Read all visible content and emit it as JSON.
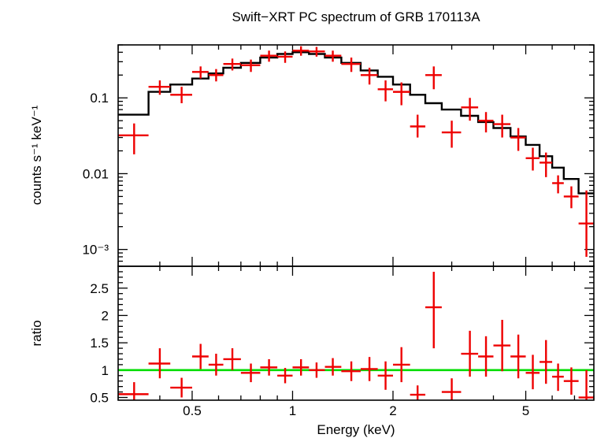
{
  "chart_data": {
    "type": "scatter",
    "title": "Swift−XRT PC spectrum of GRB 170113A",
    "xlabel": "Energy (keV)",
    "xscale": "log",
    "xlim": [
      0.3,
      8.0
    ],
    "xticks": [
      {
        "value": 0.5,
        "label": "0.5"
      },
      {
        "value": 1,
        "label": "1"
      },
      {
        "value": 2,
        "label": "2"
      },
      {
        "value": 5,
        "label": "5"
      }
    ],
    "colors": {
      "data": "#ee0000",
      "model": "#000000",
      "unity": "#00dd00",
      "axes": "#000000"
    },
    "panels": {
      "spectrum": {
        "ylabel": "counts s⁻¹ keV⁻¹",
        "yscale": "log",
        "ylim": [
          0.0006,
          0.5
        ],
        "yticks": [
          {
            "value": 0.1,
            "label": "0.1"
          },
          {
            "value": 0.01,
            "label": "0.01"
          },
          {
            "value": 0.001,
            "label": "10⁻³"
          }
        ],
        "model": {
          "edges": [
            0.3,
            0.37,
            0.43,
            0.5,
            0.56,
            0.62,
            0.7,
            0.8,
            0.9,
            1.0,
            1.12,
            1.25,
            1.4,
            1.6,
            1.8,
            2.0,
            2.25,
            2.5,
            2.8,
            3.2,
            3.6,
            4.0,
            4.5,
            5.0,
            5.5,
            6.0,
            6.5,
            7.2,
            8.0
          ],
          "values": [
            0.06,
            0.12,
            0.15,
            0.18,
            0.21,
            0.25,
            0.29,
            0.34,
            0.38,
            0.4,
            0.38,
            0.34,
            0.29,
            0.23,
            0.19,
            0.15,
            0.11,
            0.085,
            0.07,
            0.058,
            0.048,
            0.04,
            0.031,
            0.024,
            0.017,
            0.012,
            0.0085,
            0.0055
          ]
        },
        "points": [
          {
            "x": 0.335,
            "xlo": 0.3,
            "xhi": 0.37,
            "y": 0.032,
            "ylo": 0.018,
            "yhi": 0.046
          },
          {
            "x": 0.4,
            "xlo": 0.37,
            "xhi": 0.43,
            "y": 0.14,
            "ylo": 0.11,
            "yhi": 0.17
          },
          {
            "x": 0.465,
            "xlo": 0.43,
            "xhi": 0.5,
            "y": 0.11,
            "ylo": 0.085,
            "yhi": 0.14
          },
          {
            "x": 0.53,
            "xlo": 0.5,
            "xhi": 0.56,
            "y": 0.22,
            "ylo": 0.18,
            "yhi": 0.26
          },
          {
            "x": 0.59,
            "xlo": 0.56,
            "xhi": 0.62,
            "y": 0.2,
            "ylo": 0.165,
            "yhi": 0.24
          },
          {
            "x": 0.66,
            "xlo": 0.62,
            "xhi": 0.7,
            "y": 0.28,
            "ylo": 0.23,
            "yhi": 0.33
          },
          {
            "x": 0.75,
            "xlo": 0.7,
            "xhi": 0.8,
            "y": 0.27,
            "ylo": 0.22,
            "yhi": 0.32
          },
          {
            "x": 0.85,
            "xlo": 0.8,
            "xhi": 0.9,
            "y": 0.36,
            "ylo": 0.3,
            "yhi": 0.42
          },
          {
            "x": 0.95,
            "xlo": 0.9,
            "xhi": 1.0,
            "y": 0.35,
            "ylo": 0.29,
            "yhi": 0.41
          },
          {
            "x": 1.06,
            "xlo": 1.0,
            "xhi": 1.12,
            "y": 0.42,
            "ylo": 0.36,
            "yhi": 0.48
          },
          {
            "x": 1.18,
            "xlo": 1.12,
            "xhi": 1.25,
            "y": 0.41,
            "ylo": 0.35,
            "yhi": 0.47
          },
          {
            "x": 1.32,
            "xlo": 1.25,
            "xhi": 1.4,
            "y": 0.36,
            "ylo": 0.3,
            "yhi": 0.42
          },
          {
            "x": 1.5,
            "xlo": 1.4,
            "xhi": 1.6,
            "y": 0.28,
            "ylo": 0.22,
            "yhi": 0.34
          },
          {
            "x": 1.7,
            "xlo": 1.6,
            "xhi": 1.8,
            "y": 0.2,
            "ylo": 0.15,
            "yhi": 0.25
          },
          {
            "x": 1.9,
            "xlo": 1.8,
            "xhi": 2.0,
            "y": 0.13,
            "ylo": 0.09,
            "yhi": 0.17
          },
          {
            "x": 2.12,
            "xlo": 2.0,
            "xhi": 2.25,
            "y": 0.12,
            "ylo": 0.08,
            "yhi": 0.16
          },
          {
            "x": 2.37,
            "xlo": 2.25,
            "xhi": 2.5,
            "y": 0.042,
            "ylo": 0.03,
            "yhi": 0.06
          },
          {
            "x": 2.65,
            "xlo": 2.5,
            "xhi": 2.8,
            "y": 0.2,
            "ylo": 0.13,
            "yhi": 0.26
          },
          {
            "x": 3.0,
            "xlo": 2.8,
            "xhi": 3.2,
            "y": 0.035,
            "ylo": 0.022,
            "yhi": 0.05
          },
          {
            "x": 3.4,
            "xlo": 3.2,
            "xhi": 3.6,
            "y": 0.075,
            "ylo": 0.05,
            "yhi": 0.1
          },
          {
            "x": 3.8,
            "xlo": 3.6,
            "xhi": 4.0,
            "y": 0.05,
            "ylo": 0.035,
            "yhi": 0.065
          },
          {
            "x": 4.25,
            "xlo": 4.0,
            "xhi": 4.5,
            "y": 0.045,
            "ylo": 0.03,
            "yhi": 0.06
          },
          {
            "x": 4.75,
            "xlo": 4.5,
            "xhi": 5.0,
            "y": 0.03,
            "ylo": 0.02,
            "yhi": 0.04
          },
          {
            "x": 5.25,
            "xlo": 5.0,
            "xhi": 5.5,
            "y": 0.016,
            "ylo": 0.011,
            "yhi": 0.022
          },
          {
            "x": 5.75,
            "xlo": 5.5,
            "xhi": 6.0,
            "y": 0.014,
            "ylo": 0.009,
            "yhi": 0.019
          },
          {
            "x": 6.25,
            "xlo": 6.0,
            "xhi": 6.5,
            "y": 0.0075,
            "ylo": 0.0055,
            "yhi": 0.0095
          },
          {
            "x": 6.85,
            "xlo": 6.5,
            "xhi": 7.2,
            "y": 0.005,
            "ylo": 0.0035,
            "yhi": 0.0068
          },
          {
            "x": 7.6,
            "xlo": 7.2,
            "xhi": 8.0,
            "y": 0.0022,
            "ylo": 0.0008,
            "yhi": 0.006
          }
        ]
      },
      "ratio": {
        "ylabel": "ratio",
        "yscale": "linear",
        "ylim": [
          0.45,
          2.9
        ],
        "yticks": [
          {
            "value": 0.5,
            "label": "0.5"
          },
          {
            "value": 1,
            "label": "1"
          },
          {
            "value": 1.5,
            "label": "1.5"
          },
          {
            "value": 2,
            "label": "2"
          },
          {
            "value": 2.5,
            "label": "2.5"
          }
        ],
        "unity": 1,
        "points": [
          {
            "x": 0.335,
            "xlo": 0.3,
            "xhi": 0.37,
            "y": 0.56,
            "ylo": 0.45,
            "yhi": 0.78
          },
          {
            "x": 0.4,
            "xlo": 0.37,
            "xhi": 0.43,
            "y": 1.12,
            "ylo": 0.85,
            "yhi": 1.4
          },
          {
            "x": 0.465,
            "xlo": 0.43,
            "xhi": 0.5,
            "y": 0.68,
            "ylo": 0.5,
            "yhi": 0.86
          },
          {
            "x": 0.53,
            "xlo": 0.5,
            "xhi": 0.56,
            "y": 1.25,
            "ylo": 1.02,
            "yhi": 1.48
          },
          {
            "x": 0.59,
            "xlo": 0.56,
            "xhi": 0.62,
            "y": 1.1,
            "ylo": 0.9,
            "yhi": 1.3
          },
          {
            "x": 0.66,
            "xlo": 0.62,
            "xhi": 0.7,
            "y": 1.2,
            "ylo": 1.0,
            "yhi": 1.4
          },
          {
            "x": 0.75,
            "xlo": 0.7,
            "xhi": 0.8,
            "y": 0.95,
            "ylo": 0.78,
            "yhi": 1.12
          },
          {
            "x": 0.85,
            "xlo": 0.8,
            "xhi": 0.9,
            "y": 1.05,
            "ylo": 0.9,
            "yhi": 1.2
          },
          {
            "x": 0.95,
            "xlo": 0.9,
            "xhi": 1.0,
            "y": 0.9,
            "ylo": 0.76,
            "yhi": 1.04
          },
          {
            "x": 1.06,
            "xlo": 1.0,
            "xhi": 1.12,
            "y": 1.05,
            "ylo": 0.9,
            "yhi": 1.2
          },
          {
            "x": 1.18,
            "xlo": 1.12,
            "xhi": 1.25,
            "y": 1.0,
            "ylo": 0.86,
            "yhi": 1.14
          },
          {
            "x": 1.32,
            "xlo": 1.25,
            "xhi": 1.4,
            "y": 1.06,
            "ylo": 0.9,
            "yhi": 1.22
          },
          {
            "x": 1.5,
            "xlo": 1.4,
            "xhi": 1.6,
            "y": 0.98,
            "ylo": 0.8,
            "yhi": 1.16
          },
          {
            "x": 1.7,
            "xlo": 1.6,
            "xhi": 1.8,
            "y": 1.02,
            "ylo": 0.8,
            "yhi": 1.24
          },
          {
            "x": 1.9,
            "xlo": 1.8,
            "xhi": 2.0,
            "y": 0.9,
            "ylo": 0.64,
            "yhi": 1.16
          },
          {
            "x": 2.12,
            "xlo": 2.0,
            "xhi": 2.25,
            "y": 1.1,
            "ylo": 0.78,
            "yhi": 1.42
          },
          {
            "x": 2.37,
            "xlo": 2.25,
            "xhi": 2.5,
            "y": 0.55,
            "ylo": 0.45,
            "yhi": 0.72
          },
          {
            "x": 2.65,
            "xlo": 2.5,
            "xhi": 2.8,
            "y": 2.15,
            "ylo": 1.4,
            "yhi": 2.8
          },
          {
            "x": 3.0,
            "xlo": 2.8,
            "xhi": 3.2,
            "y": 0.6,
            "ylo": 0.45,
            "yhi": 0.85
          },
          {
            "x": 3.4,
            "xlo": 3.2,
            "xhi": 3.6,
            "y": 1.3,
            "ylo": 0.88,
            "yhi": 1.72
          },
          {
            "x": 3.8,
            "xlo": 3.6,
            "xhi": 4.0,
            "y": 1.25,
            "ylo": 0.88,
            "yhi": 1.62
          },
          {
            "x": 4.25,
            "xlo": 4.0,
            "xhi": 4.5,
            "y": 1.45,
            "ylo": 0.98,
            "yhi": 1.92
          },
          {
            "x": 4.75,
            "xlo": 4.5,
            "xhi": 5.0,
            "y": 1.25,
            "ylo": 0.85,
            "yhi": 1.65
          },
          {
            "x": 5.25,
            "xlo": 5.0,
            "xhi": 5.5,
            "y": 0.95,
            "ylo": 0.65,
            "yhi": 1.28
          },
          {
            "x": 5.75,
            "xlo": 5.5,
            "xhi": 6.0,
            "y": 1.15,
            "ylo": 0.75,
            "yhi": 1.55
          },
          {
            "x": 6.25,
            "xlo": 6.0,
            "xhi": 6.5,
            "y": 0.88,
            "ylo": 0.62,
            "yhi": 1.12
          },
          {
            "x": 6.85,
            "xlo": 6.5,
            "xhi": 7.2,
            "y": 0.8,
            "ylo": 0.55,
            "yhi": 1.05
          },
          {
            "x": 7.6,
            "xlo": 7.2,
            "xhi": 8.0,
            "y": 0.5,
            "ylo": 0.45,
            "yhi": 1.0
          }
        ]
      }
    }
  }
}
